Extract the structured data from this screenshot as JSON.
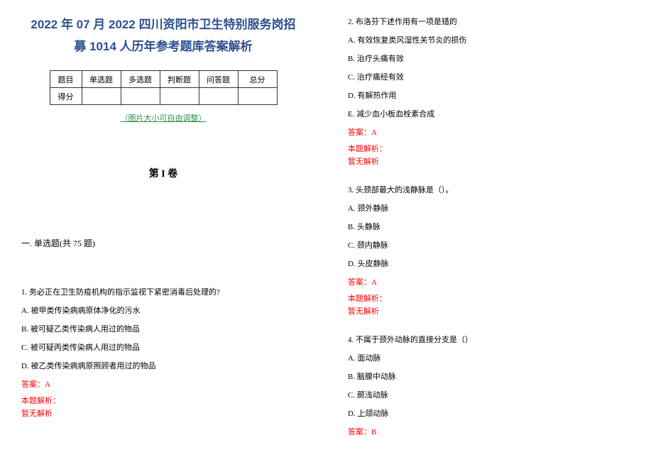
{
  "title_line1": "2022 年 07 月 2022 四川资阳市卫生特别服务岗招",
  "title_line2": "募 1014 人历年参考题库答案解析",
  "score_table": {
    "headers": [
      "题目",
      "单选题",
      "多选题",
      "判断题",
      "问答题",
      "总分"
    ],
    "row2_label": "得分"
  },
  "adjust_note": "（图片大小可自由调整）",
  "volume_title": "第 I 卷",
  "section_title": "一. 单选题(共 75 题)",
  "q1": {
    "text": "1. 务必正在卫生防疫机构的指示监视下紧密消毒后处理的?",
    "options": [
      "A. 被甲类传染病病原体净化的污水",
      "B. 被可疑乙类传染病人用过的物品",
      "C. 被可疑丙类传染病人用过的物品",
      "D. 被乙类传染病病原照顾者用过的物品"
    ],
    "answer": "答案：A",
    "analysis_label": "本题解析：",
    "analysis_text": "暂无解析"
  },
  "q2": {
    "text": "2. 布洛芬下述作用有一项是错的",
    "options": [
      "A. 有效恢复类风湿性关节炎的损伤",
      "B. 治疗头痛有效",
      "C. 治疗痛经有效",
      "D. 有解热作用",
      "E. 减少血小板血栓素合成"
    ],
    "answer": "答案：A",
    "analysis_label": "本题解析：",
    "analysis_text": "暂无解析"
  },
  "q3": {
    "text": "3. 头颈部最大的浅静脉是（）。",
    "options": [
      "A. 颈外静脉",
      "B. 头静脉",
      "C. 颈内静脉",
      "D. 头皮静脉"
    ],
    "answer": "答案：A",
    "analysis_label": "本题解析：",
    "analysis_text": "暂无解析"
  },
  "q4": {
    "text": "4. 不属于颈外动脉的直接分支是（）",
    "options": [
      "A. 面动脉",
      "B. 脑膜中动脉",
      "C. 颞浅动脉",
      "D. 上颌动脉"
    ],
    "answer": "答案：B"
  }
}
